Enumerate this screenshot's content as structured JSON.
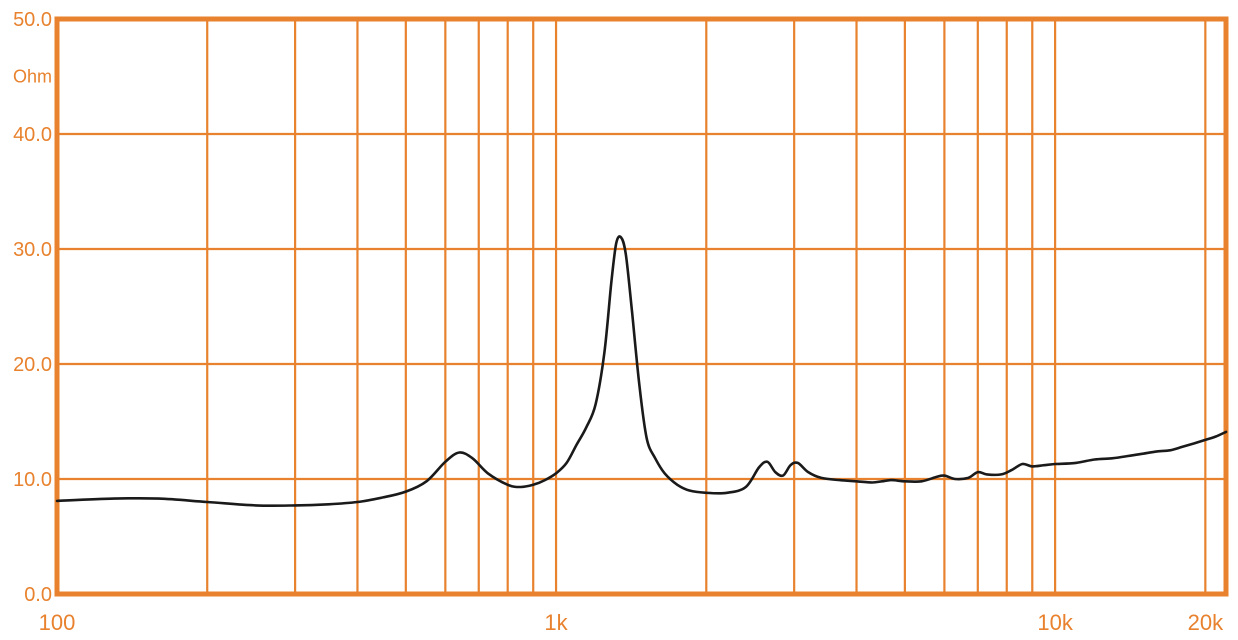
{
  "colors": {
    "grid": "#e8822e",
    "curve": "#1a1a1a",
    "background": "#ffffff"
  },
  "chart_data": {
    "type": "line",
    "title": "",
    "xlabel": "",
    "ylabel": "Ohm",
    "x_scale": "log",
    "xlim": [
      100,
      22000
    ],
    "ylim": [
      0,
      50
    ],
    "x_ticks": [
      {
        "value": 100,
        "label": "100"
      },
      {
        "value": 1000,
        "label": "1k"
      },
      {
        "value": 10000,
        "label": "10k"
      },
      {
        "value": 20000,
        "label": "20k"
      }
    ],
    "y_ticks": [
      {
        "value": 0,
        "label": "0.0"
      },
      {
        "value": 10,
        "label": "10.0"
      },
      {
        "value": 20,
        "label": "20.0"
      },
      {
        "value": 30,
        "label": "30.0"
      },
      {
        "value": 40,
        "label": "40.0"
      },
      {
        "value": 50,
        "label": "50.0"
      }
    ],
    "unit_label": {
      "text": "Ohm",
      "value": 45
    },
    "v_grid": [
      100,
      200,
      300,
      400,
      500,
      600,
      700,
      800,
      900,
      1000,
      2000,
      3000,
      4000,
      5000,
      6000,
      7000,
      8000,
      9000,
      10000,
      20000
    ],
    "h_grid": [
      0,
      10,
      20,
      30,
      40,
      50
    ],
    "grid": true,
    "series": [
      {
        "points": [
          [
            100,
            8.1
          ],
          [
            130,
            8.3
          ],
          [
            160,
            8.3
          ],
          [
            200,
            8.0
          ],
          [
            250,
            7.7
          ],
          [
            300,
            7.7
          ],
          [
            350,
            7.8
          ],
          [
            400,
            8.0
          ],
          [
            450,
            8.4
          ],
          [
            500,
            8.9
          ],
          [
            550,
            9.8
          ],
          [
            600,
            11.5
          ],
          [
            640,
            12.3
          ],
          [
            680,
            11.8
          ],
          [
            730,
            10.5
          ],
          [
            800,
            9.5
          ],
          [
            850,
            9.3
          ],
          [
            900,
            9.5
          ],
          [
            950,
            9.9
          ],
          [
            1000,
            10.5
          ],
          [
            1050,
            11.4
          ],
          [
            1100,
            13.0
          ],
          [
            1150,
            14.5
          ],
          [
            1200,
            16.5
          ],
          [
            1250,
            21.0
          ],
          [
            1290,
            27.0
          ],
          [
            1320,
            30.5
          ],
          [
            1350,
            31.0
          ],
          [
            1380,
            29.5
          ],
          [
            1420,
            24.5
          ],
          [
            1470,
            18.0
          ],
          [
            1520,
            13.5
          ],
          [
            1580,
            11.8
          ],
          [
            1650,
            10.5
          ],
          [
            1750,
            9.5
          ],
          [
            1850,
            9.0
          ],
          [
            2000,
            8.8
          ],
          [
            2200,
            8.8
          ],
          [
            2400,
            9.3
          ],
          [
            2550,
            11.0
          ],
          [
            2650,
            11.5
          ],
          [
            2750,
            10.6
          ],
          [
            2850,
            10.3
          ],
          [
            2950,
            11.2
          ],
          [
            3050,
            11.4
          ],
          [
            3200,
            10.6
          ],
          [
            3400,
            10.1
          ],
          [
            3700,
            9.9
          ],
          [
            4000,
            9.8
          ],
          [
            4300,
            9.7
          ],
          [
            4500,
            9.8
          ],
          [
            4700,
            9.9
          ],
          [
            5000,
            9.8
          ],
          [
            5400,
            9.8
          ],
          [
            5800,
            10.2
          ],
          [
            6000,
            10.3
          ],
          [
            6300,
            10.0
          ],
          [
            6700,
            10.1
          ],
          [
            7000,
            10.6
          ],
          [
            7300,
            10.4
          ],
          [
            7800,
            10.4
          ],
          [
            8200,
            10.8
          ],
          [
            8600,
            11.3
          ],
          [
            9000,
            11.1
          ],
          [
            9500,
            11.2
          ],
          [
            10000,
            11.3
          ],
          [
            11000,
            11.4
          ],
          [
            12000,
            11.7
          ],
          [
            13000,
            11.8
          ],
          [
            14000,
            12.0
          ],
          [
            15000,
            12.2
          ],
          [
            16000,
            12.4
          ],
          [
            17000,
            12.5
          ],
          [
            18000,
            12.8
          ],
          [
            19000,
            13.1
          ],
          [
            20000,
            13.4
          ],
          [
            21000,
            13.7
          ],
          [
            22000,
            14.1
          ]
        ]
      }
    ]
  }
}
